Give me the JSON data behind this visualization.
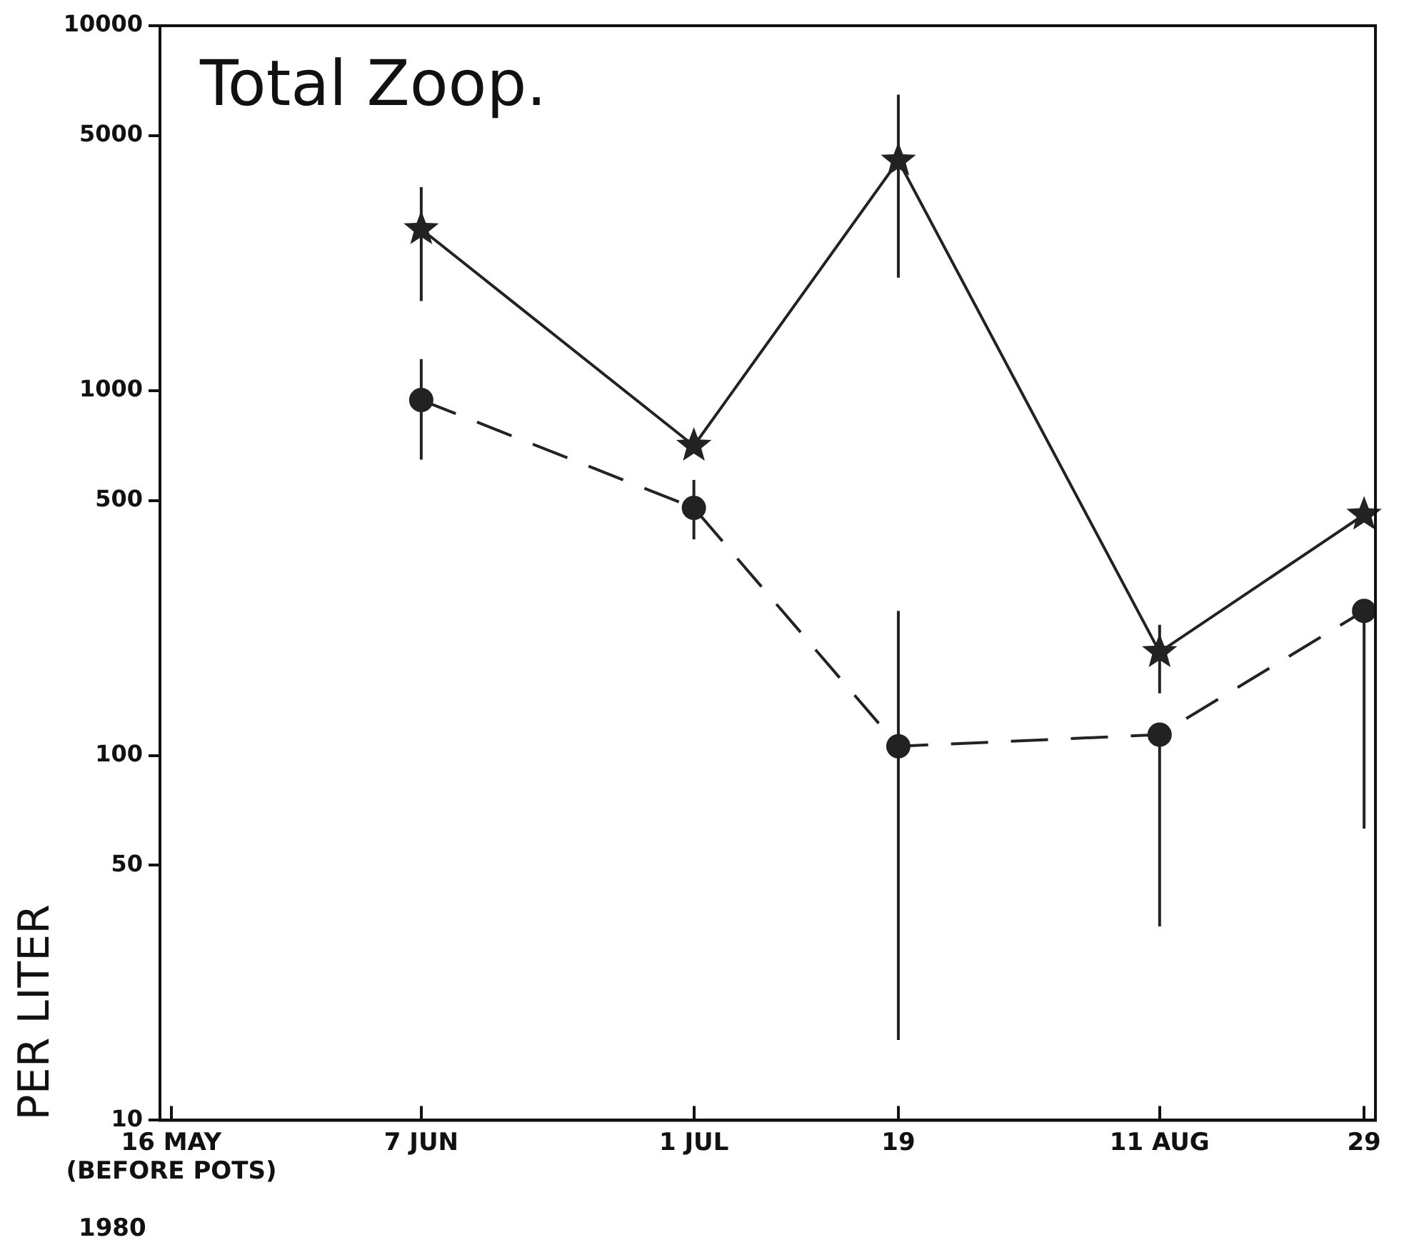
{
  "chart_data": {
    "type": "line",
    "title": "Total Zoop.",
    "ylabel": "PER LITER",
    "x": [
      "--06-07",
      "--07-01",
      "--07-19",
      "--08-11",
      "--08-29"
    ],
    "series": [
      {
        "color": "#222222",
        "marker": "star",
        "line_style": "solid",
        "values": [
          2770,
          706,
          4270,
          192,
          457
        ],
        "errors": [
          [
            1760,
            3610
          ],
          null,
          [
            2040,
            6470
          ],
          [
            148,
            228
          ],
          null
        ]
      },
      {
        "color": "#222222",
        "marker": "circle",
        "line_style": "dashed",
        "values": [
          942,
          477,
          106,
          114,
          249
        ],
        "errors": [
          [
            647,
            1220
          ],
          [
            391,
            569
          ],
          [
            16.6,
            249
          ],
          [
            34,
            114
          ],
          [
            63,
            249
          ]
        ]
      }
    ],
    "log": "y",
    "ylim": [
      10,
      10000
    ],
    "yticks": [
      10,
      50,
      100,
      500,
      1000,
      5000,
      10000
    ],
    "xlim": [
      "--05-15",
      "--08-30"
    ],
    "xticks": [
      {
        "value": "--05-16",
        "label": "16 MAY\n(BEFORE POTS)"
      },
      {
        "value": "--06-07",
        "label": "7 JUN"
      },
      {
        "value": "--07-01",
        "label": "1 JUL"
      },
      {
        "value": "--07-19",
        "label": "19"
      },
      {
        "value": "--08-11",
        "label": "11 AUG"
      },
      {
        "value": "--08-29",
        "label": "29"
      }
    ],
    "grid": false,
    "legend": false,
    "annotations": [
      "1980"
    ]
  }
}
